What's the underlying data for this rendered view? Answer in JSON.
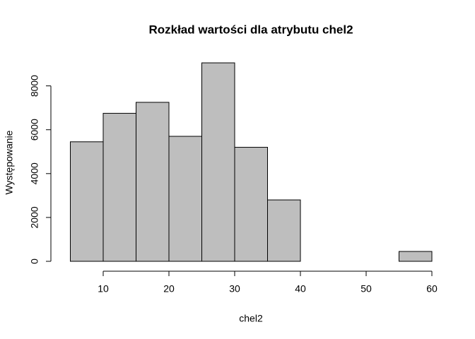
{
  "chart_data": {
    "type": "histogram",
    "title": "Rozkład wartości dla atrybutu chel2",
    "x_label": "chel2",
    "y_label": "Występowanie",
    "bins": [
      5,
      10,
      15,
      20,
      25,
      30,
      35,
      40,
      45,
      50,
      55,
      60
    ],
    "values": [
      5450,
      6750,
      7250,
      5700,
      9050,
      5200,
      2800,
      0,
      0,
      0,
      450
    ],
    "color": "#bebebe",
    "xlim": [
      5,
      60
    ],
    "xticks": [
      10,
      20,
      30,
      40,
      50,
      60
    ],
    "ylim": [
      0,
      9050
    ],
    "yticks": [
      0,
      2000,
      4000,
      6000,
      8000
    ]
  }
}
